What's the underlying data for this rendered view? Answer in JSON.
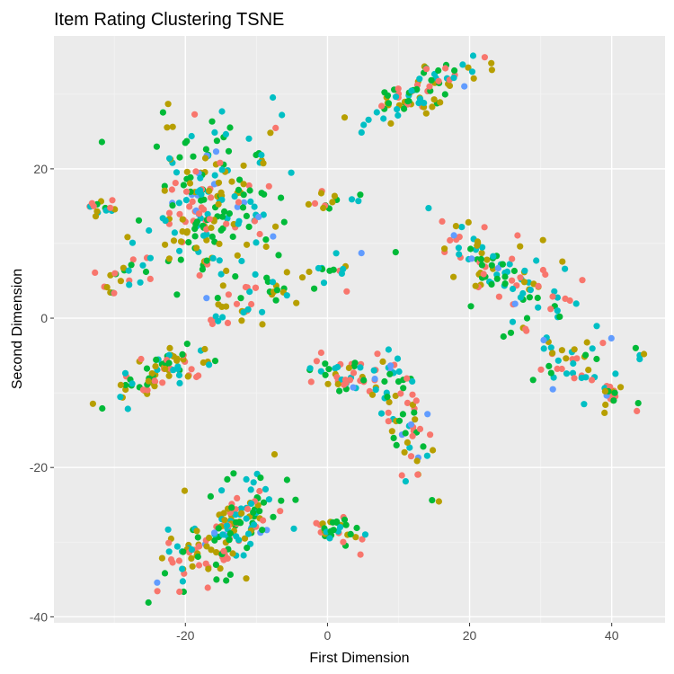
{
  "chart_data": {
    "type": "scatter",
    "title": "Item Rating Clustering TSNE",
    "xlabel": "First Dimension",
    "ylabel": "Second Dimension",
    "xlim": [
      -38.5,
      47.5
    ],
    "ylim": [
      -40.8,
      37.8
    ],
    "x_ticks": [
      -20,
      0,
      20,
      40
    ],
    "y_ticks": [
      -40,
      -20,
      0,
      20
    ],
    "x_tick_labels": [
      "-20",
      "0",
      "20",
      "40"
    ],
    "y_tick_labels": [
      "-40",
      "-20",
      "0",
      "20"
    ],
    "grid": true,
    "legend": "none",
    "colors": {
      "panel_background": "#ebebeb",
      "grid_major": "#ffffff",
      "grid_minor": "#f4f4f4",
      "series": [
        "#f8766d",
        "#b79f00",
        "#00ba38",
        "#00bfc4",
        "#619cff"
      ]
    },
    "clusters": [
      {
        "cx": -16,
        "cy": 15,
        "sx": 4.5,
        "sy": 5.5,
        "rot": 0,
        "n": 230
      },
      {
        "cx": -32,
        "cy": 14.8,
        "sx": 1.2,
        "sy": 0.5,
        "rot": 0,
        "n": 15
      },
      {
        "cx": -28,
        "cy": 6,
        "sx": 2,
        "sy": 1.2,
        "rot": 25,
        "n": 22
      },
      {
        "cx": 0.5,
        "cy": 15.7,
        "sx": 1.4,
        "sy": 0.7,
        "rot": 15,
        "n": 14
      },
      {
        "cx": 13,
        "cy": 30.5,
        "sx": 5,
        "sy": 1.2,
        "rot": 28,
        "n": 85
      },
      {
        "cx": -9,
        "cy": 3,
        "sx": 7,
        "sy": 1.3,
        "rot": 22,
        "n": 55
      },
      {
        "cx": -23,
        "cy": -7,
        "sx": 4,
        "sy": 1.5,
        "rot": 22,
        "n": 80
      },
      {
        "cx": 26,
        "cy": 5,
        "sx": 7,
        "sy": 2.5,
        "rot": -33,
        "n": 120
      },
      {
        "cx": 36,
        "cy": -7,
        "sx": 4.5,
        "sy": 1.8,
        "rot": -28,
        "n": 45
      },
      {
        "cx": 4,
        "cy": -8,
        "sx": 4,
        "sy": 1.4,
        "rot": 0,
        "n": 60
      },
      {
        "cx": 11,
        "cy": -15,
        "sx": 1.5,
        "sy": 4.5,
        "rot": 18,
        "n": 55
      },
      {
        "cx": 2,
        "cy": -28.5,
        "sx": 2.8,
        "sy": 1.0,
        "rot": -10,
        "n": 35
      },
      {
        "cx": -15,
        "cy": -29,
        "sx": 5.5,
        "sy": 2.2,
        "rot": 40,
        "n": 170
      },
      {
        "cx": 44,
        "cy": -5,
        "sx": 0.6,
        "sy": 0.7,
        "rot": 0,
        "n": 4
      },
      {
        "cx": 40,
        "cy": -10,
        "sx": 0.6,
        "sy": 0.5,
        "rot": 0,
        "n": 10
      }
    ]
  }
}
